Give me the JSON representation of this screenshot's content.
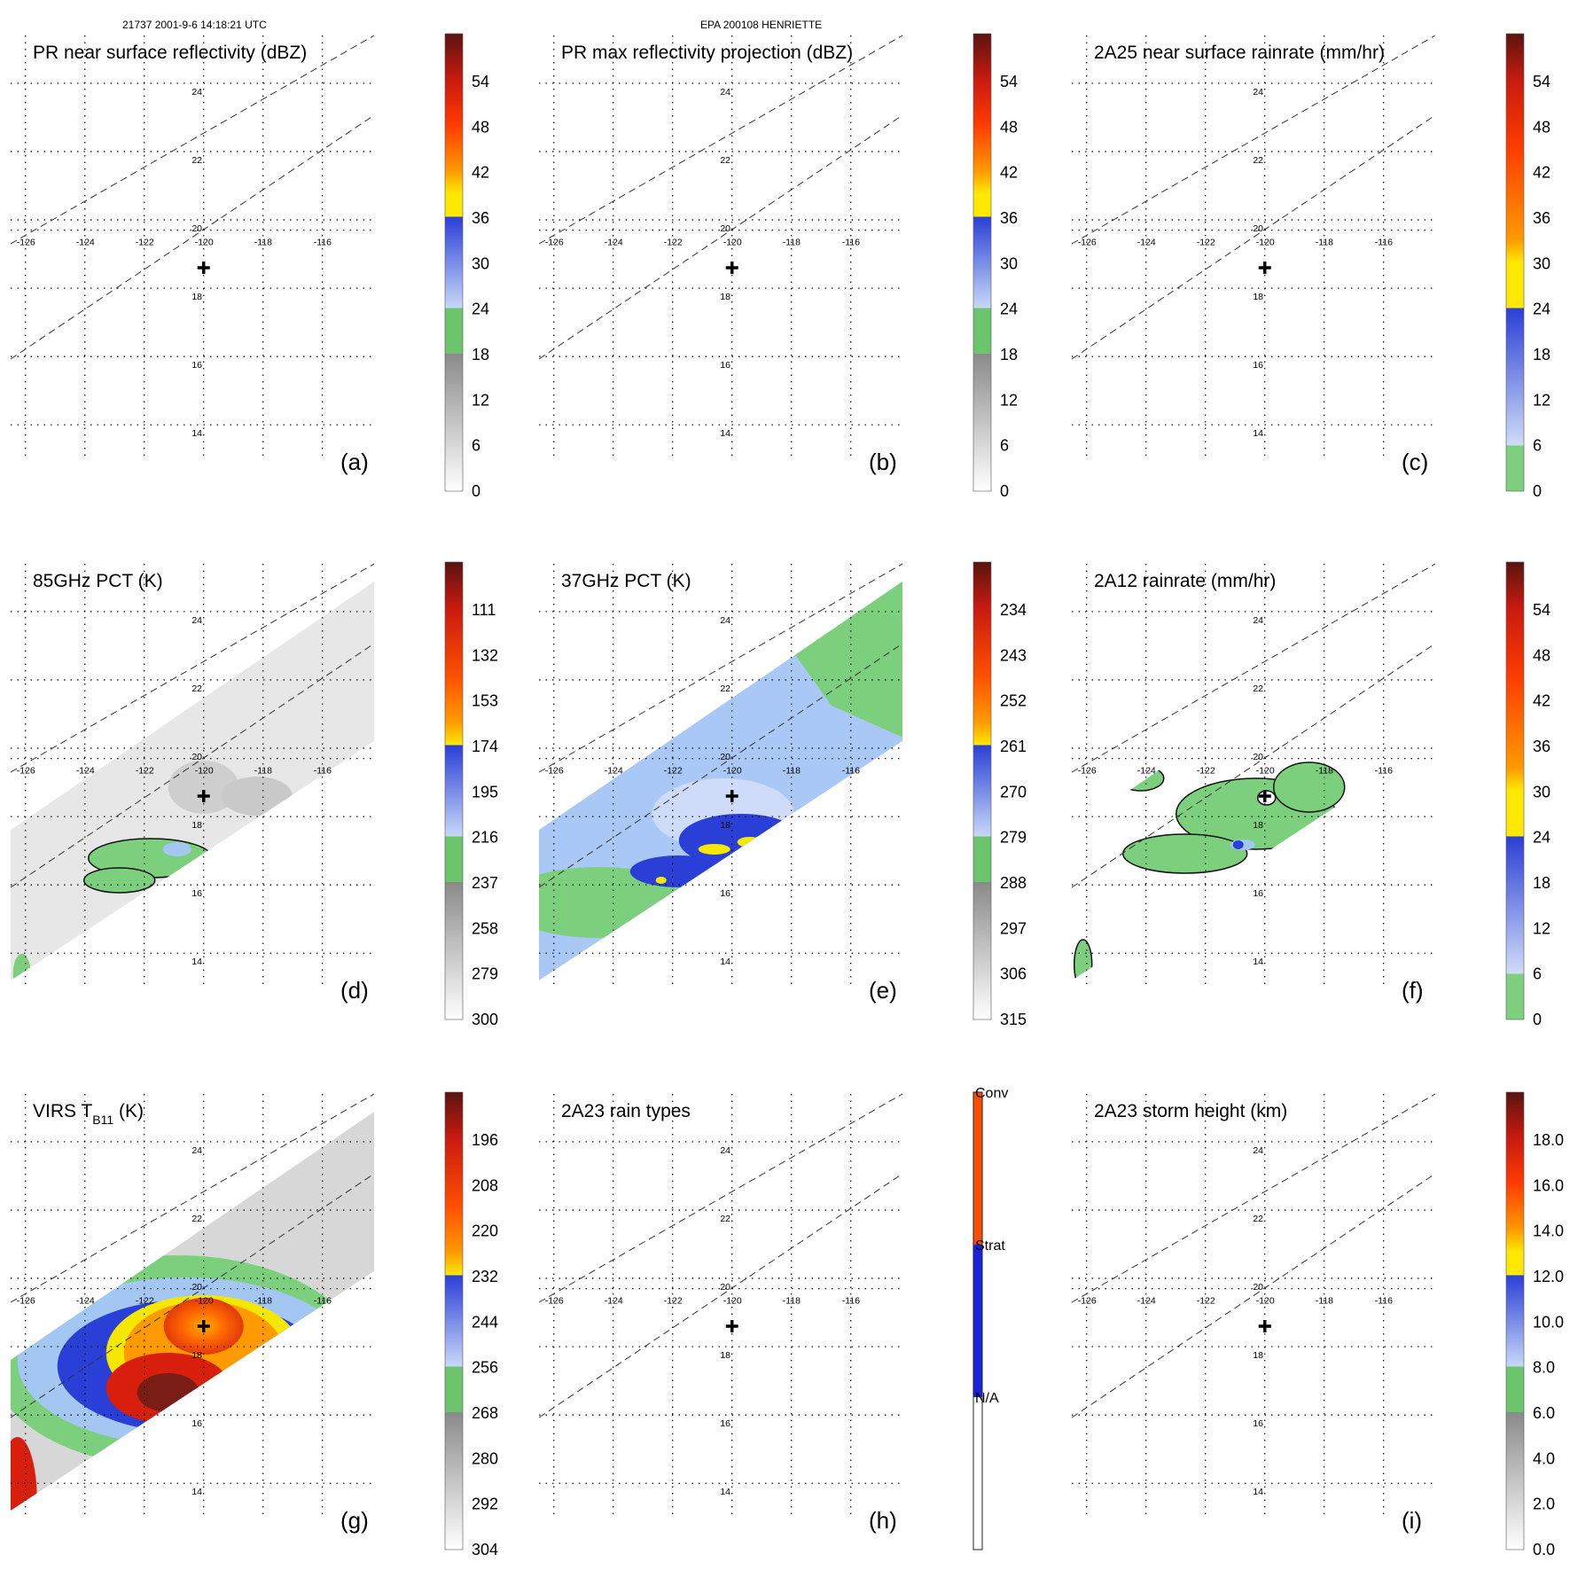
{
  "header": {
    "orbit_time": "21737 2001-9-6 14:18:21 UTC",
    "storm": "EPA 200108 HENRIETTE"
  },
  "chart_data": [
    {
      "type": "heatmap",
      "letter": "(a)",
      "title": "PR near surface reflectivity (dBZ)",
      "colorbar_ticks": [
        "54",
        "48",
        "42",
        "36",
        "30",
        "24",
        "18",
        "12",
        "6",
        "0"
      ],
      "field": "none",
      "rain_region": false
    },
    {
      "type": "heatmap",
      "letter": "(b)",
      "title": "PR max reflectivity projection (dBZ)",
      "colorbar_ticks": [
        "54",
        "48",
        "42",
        "36",
        "30",
        "24",
        "18",
        "12",
        "6",
        "0"
      ],
      "field": "none",
      "rain_region": false
    },
    {
      "type": "heatmap",
      "letter": "(c)",
      "title": "2A25 near surface rainrate (mm/hr)",
      "colorbar_ticks": [
        "54",
        "48",
        "42",
        "36",
        "30",
        "24",
        "18",
        "12",
        "6",
        "0"
      ],
      "field": "none",
      "rain_region": false
    },
    {
      "type": "heatmap",
      "letter": "(d)",
      "title": "85GHz PCT (K)",
      "colorbar_ticks": [
        "111",
        "132",
        "153",
        "174",
        "195",
        "216",
        "237",
        "258",
        "279",
        "300"
      ],
      "field": "pct85",
      "rain_region": true
    },
    {
      "type": "heatmap",
      "letter": "(e)",
      "title": "37GHz PCT (K)",
      "colorbar_ticks": [
        "234",
        "243",
        "252",
        "261",
        "270",
        "279",
        "288",
        "297",
        "306",
        "315"
      ],
      "field": "pct37",
      "rain_region": true
    },
    {
      "type": "heatmap",
      "letter": "(f)",
      "title": "2A12 rainrate (mm/hr)",
      "colorbar_ticks": [
        "54",
        "48",
        "42",
        "36",
        "30",
        "24",
        "18",
        "12",
        "6",
        "0"
      ],
      "field": "rain2a12",
      "rain_region": true
    },
    {
      "type": "heatmap",
      "letter": "(g)",
      "title": "VIRS T",
      "title_sub": "B11",
      "title_suffix": " (K)",
      "colorbar_ticks": [
        "196",
        "208",
        "220",
        "232",
        "244",
        "256",
        "268",
        "280",
        "292",
        "304"
      ],
      "field": "virs",
      "rain_region": true
    },
    {
      "type": "heatmap",
      "letter": "(h)",
      "title": "2A23 rain types",
      "colorbar_ticks": [
        "Conv",
        "Strat",
        "N/A"
      ],
      "categorical": true,
      "field": "none",
      "rain_region": false
    },
    {
      "type": "heatmap",
      "letter": "(i)",
      "title": "2A23 storm height (km)",
      "colorbar_ticks": [
        "18.0",
        "16.0",
        "14.0",
        "12.0",
        "10.0",
        "8.0",
        "6.0",
        "4.0",
        "2.0",
        "0.0"
      ],
      "field": "none",
      "rain_region": false
    }
  ],
  "axes": {
    "lon_ticks": [
      "-126",
      "-124",
      "-122",
      "-120",
      "-118",
      "-116"
    ],
    "lat_ticks": [
      "24",
      "22",
      "20",
      "18",
      "16",
      "14"
    ],
    "lon_range": [
      -126.5,
      -114.2
    ],
    "lat_range": [
      13.2,
      25.4
    ],
    "storm_center": {
      "lon": -120.0,
      "lat": 18.6
    }
  },
  "colors": {
    "gray": "#bdbdbd",
    "green": "#7ccf7c",
    "light_blue": "#a4c6f2",
    "blue": "#2a3fd6",
    "yellow": "#f4e800",
    "orange": "#ff7a00",
    "red": "#d81e0c",
    "dark_red": "#7a1d14"
  }
}
